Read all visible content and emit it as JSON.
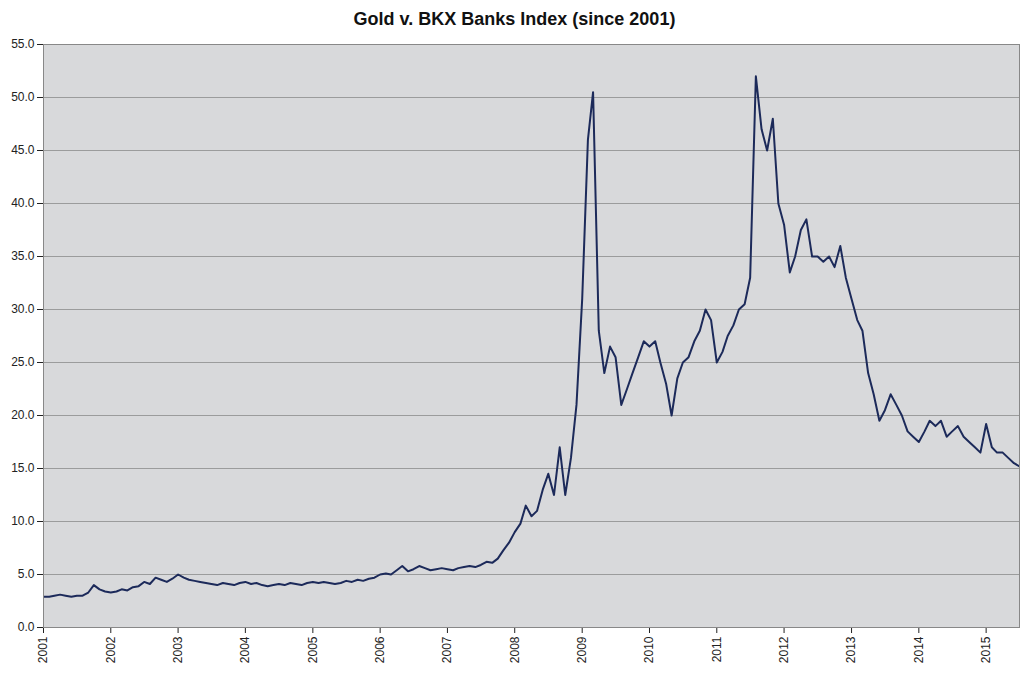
{
  "chart_data": {
    "type": "line",
    "title": "Gold v. BKX Banks Index (since 2001)",
    "color": "#1c2a5a",
    "grid": true,
    "xlim": [
      "2001-01",
      "2015-07"
    ],
    "xticks": [
      "2001",
      "2002",
      "2003",
      "2004",
      "2005",
      "2006",
      "2007",
      "2008",
      "2009",
      "2010",
      "2011",
      "2012",
      "2013",
      "2014",
      "2015"
    ],
    "ylim": [
      0,
      55
    ],
    "yticks": [
      {
        "value": 0,
        "label": "0.0"
      },
      {
        "value": 5,
        "label": "5.0"
      },
      {
        "value": 10,
        "label": "10.0"
      },
      {
        "value": 15,
        "label": "15.0"
      },
      {
        "value": 20,
        "label": "20.0"
      },
      {
        "value": 25,
        "label": "25.0"
      },
      {
        "value": 30,
        "label": "30.0"
      },
      {
        "value": 35,
        "label": "35.0"
      },
      {
        "value": 40,
        "label": "40.0"
      },
      {
        "value": 45,
        "label": "45.0"
      },
      {
        "value": 50,
        "label": "50.0"
      },
      {
        "value": 55,
        "label": "55.0"
      }
    ],
    "x": [
      "2001-01",
      "2001-02",
      "2001-03",
      "2001-04",
      "2001-05",
      "2001-06",
      "2001-07",
      "2001-08",
      "2001-09",
      "2001-10",
      "2001-11",
      "2001-12",
      "2002-01",
      "2002-02",
      "2002-03",
      "2002-04",
      "2002-05",
      "2002-06",
      "2002-07",
      "2002-08",
      "2002-09",
      "2002-10",
      "2002-11",
      "2002-12",
      "2003-01",
      "2003-02",
      "2003-03",
      "2003-04",
      "2003-05",
      "2003-06",
      "2003-07",
      "2003-08",
      "2003-09",
      "2003-10",
      "2003-11",
      "2003-12",
      "2004-01",
      "2004-02",
      "2004-03",
      "2004-04",
      "2004-05",
      "2004-06",
      "2004-07",
      "2004-08",
      "2004-09",
      "2004-10",
      "2004-11",
      "2004-12",
      "2005-01",
      "2005-02",
      "2005-03",
      "2005-04",
      "2005-05",
      "2005-06",
      "2005-07",
      "2005-08",
      "2005-09",
      "2005-10",
      "2005-11",
      "2005-12",
      "2006-01",
      "2006-02",
      "2006-03",
      "2006-04",
      "2006-05",
      "2006-06",
      "2006-07",
      "2006-08",
      "2006-09",
      "2006-10",
      "2006-11",
      "2006-12",
      "2007-01",
      "2007-02",
      "2007-03",
      "2007-04",
      "2007-05",
      "2007-06",
      "2007-07",
      "2007-08",
      "2007-09",
      "2007-10",
      "2007-11",
      "2007-12",
      "2008-01",
      "2008-02",
      "2008-03",
      "2008-04",
      "2008-05",
      "2008-06",
      "2008-07",
      "2008-08",
      "2008-09",
      "2008-10",
      "2008-11",
      "2008-12",
      "2009-01",
      "2009-02",
      "2009-03",
      "2009-04",
      "2009-05",
      "2009-06",
      "2009-07",
      "2009-08",
      "2009-09",
      "2009-10",
      "2009-11",
      "2009-12",
      "2010-01",
      "2010-02",
      "2010-03",
      "2010-04",
      "2010-05",
      "2010-06",
      "2010-07",
      "2010-08",
      "2010-09",
      "2010-10",
      "2010-11",
      "2010-12",
      "2011-01",
      "2011-02",
      "2011-03",
      "2011-04",
      "2011-05",
      "2011-06",
      "2011-07",
      "2011-08",
      "2011-09",
      "2011-10",
      "2011-11",
      "2011-12",
      "2012-01",
      "2012-02",
      "2012-03",
      "2012-04",
      "2012-05",
      "2012-06",
      "2012-07",
      "2012-08",
      "2012-09",
      "2012-10",
      "2012-11",
      "2012-12",
      "2013-01",
      "2013-02",
      "2013-03",
      "2013-04",
      "2013-05",
      "2013-06",
      "2013-07",
      "2013-08",
      "2013-09",
      "2013-10",
      "2013-11",
      "2013-12",
      "2014-01",
      "2014-02",
      "2014-03",
      "2014-04",
      "2014-05",
      "2014-06",
      "2014-07",
      "2014-08",
      "2014-09",
      "2014-10",
      "2014-11",
      "2014-12",
      "2015-01",
      "2015-02",
      "2015-03",
      "2015-04",
      "2015-05",
      "2015-06",
      "2015-07"
    ],
    "values": [
      2.9,
      2.9,
      3.0,
      3.1,
      3.0,
      2.9,
      3.0,
      3.0,
      3.3,
      4.0,
      3.6,
      3.4,
      3.3,
      3.4,
      3.6,
      3.5,
      3.8,
      3.9,
      4.3,
      4.1,
      4.7,
      4.5,
      4.3,
      4.6,
      5.0,
      4.7,
      4.5,
      4.4,
      4.3,
      4.2,
      4.1,
      4.0,
      4.2,
      4.1,
      4.0,
      4.2,
      4.3,
      4.1,
      4.2,
      4.0,
      3.9,
      4.0,
      4.1,
      4.0,
      4.2,
      4.1,
      4.0,
      4.2,
      4.3,
      4.2,
      4.3,
      4.2,
      4.1,
      4.2,
      4.4,
      4.3,
      4.5,
      4.4,
      4.6,
      4.7,
      5.0,
      5.1,
      5.0,
      5.4,
      5.8,
      5.3,
      5.5,
      5.8,
      5.6,
      5.4,
      5.5,
      5.6,
      5.5,
      5.4,
      5.6,
      5.7,
      5.8,
      5.7,
      5.9,
      6.2,
      6.1,
      6.5,
      7.3,
      8.0,
      9.0,
      9.8,
      11.5,
      10.5,
      11.0,
      13.0,
      14.5,
      12.5,
      17.0,
      12.5,
      16.0,
      21.0,
      31.0,
      46.0,
      50.5,
      28.0,
      24.0,
      26.5,
      25.5,
      21.0,
      22.5,
      24.0,
      25.5,
      27.0,
      26.5,
      27.0,
      25.0,
      23.0,
      20.0,
      23.5,
      25.0,
      25.5,
      27.0,
      28.0,
      30.0,
      29.0,
      25.0,
      26.0,
      27.5,
      28.5,
      30.0,
      30.5,
      33.0,
      52.0,
      47.0,
      45.0,
      48.0,
      40.0,
      38.0,
      33.5,
      35.0,
      37.5,
      38.5,
      35.0,
      35.0,
      34.5,
      35.0,
      34.0,
      36.0,
      33.0,
      31.0,
      29.0,
      28.0,
      24.0,
      22.0,
      19.5,
      20.5,
      22.0,
      21.0,
      20.0,
      18.5,
      18.0,
      17.5,
      18.5,
      19.5,
      19.0,
      19.5,
      18.0,
      18.5,
      19.0,
      18.0,
      17.5,
      17.0,
      16.5,
      19.2,
      17.0,
      16.5,
      16.5,
      16.0,
      15.5,
      15.2
    ]
  }
}
